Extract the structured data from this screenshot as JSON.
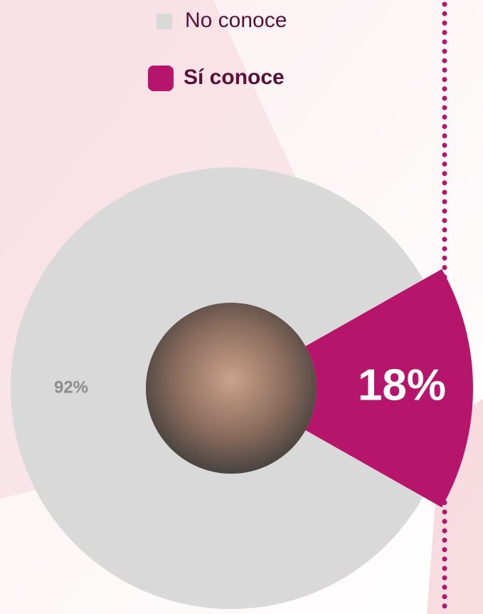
{
  "chart_data": {
    "type": "pie",
    "categories": [
      "No conoce",
      "Sí conoce"
    ],
    "values": [
      92,
      18
    ],
    "value_labels": [
      "92%",
      "18%"
    ],
    "colors": [
      "#d9d9d9",
      "#b5166b"
    ],
    "legend": "top"
  }
}
